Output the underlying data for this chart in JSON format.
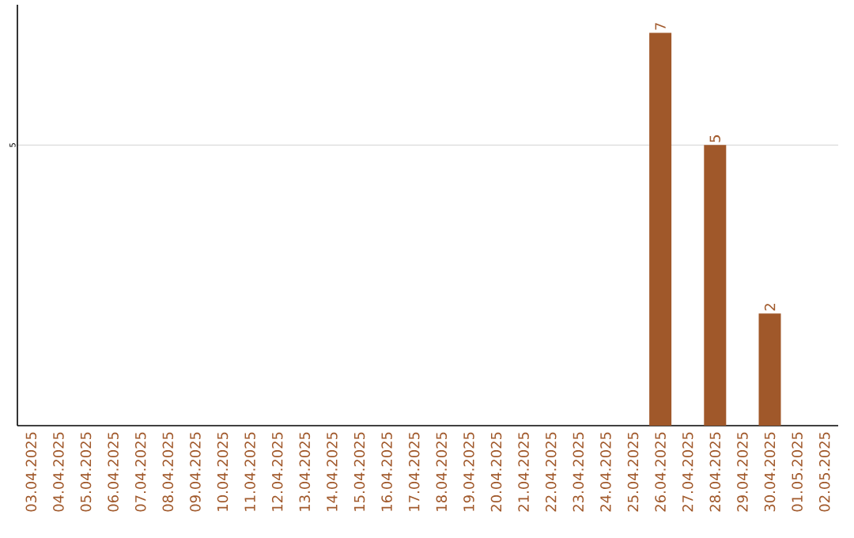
{
  "chart_data": {
    "type": "bar",
    "categories": [
      "03.04.2025",
      "04.04.2025",
      "05.04.2025",
      "06.04.2025",
      "07.04.2025",
      "08.04.2025",
      "09.04.2025",
      "10.04.2025",
      "11.04.2025",
      "12.04.2025",
      "13.04.2025",
      "14.04.2025",
      "15.04.2025",
      "16.04.2025",
      "17.04.2025",
      "18.04.2025",
      "19.04.2025",
      "20.04.2025",
      "21.04.2025",
      "22.04.2025",
      "23.04.2025",
      "24.04.2025",
      "25.04.2025",
      "26.04.2025",
      "27.04.2025",
      "28.04.2025",
      "29.04.2025",
      "30.04.2025",
      "01.05.2025",
      "02.05.2025"
    ],
    "values": [
      null,
      null,
      null,
      null,
      null,
      null,
      null,
      null,
      null,
      null,
      null,
      null,
      null,
      null,
      null,
      null,
      null,
      null,
      null,
      null,
      null,
      null,
      null,
      7,
      null,
      5,
      null,
      2,
      null,
      null
    ],
    "color": "#a0582a",
    "ylim": [
      0,
      7.5
    ],
    "yticks": [
      5
    ],
    "grid": "y",
    "data_labels": true
  }
}
